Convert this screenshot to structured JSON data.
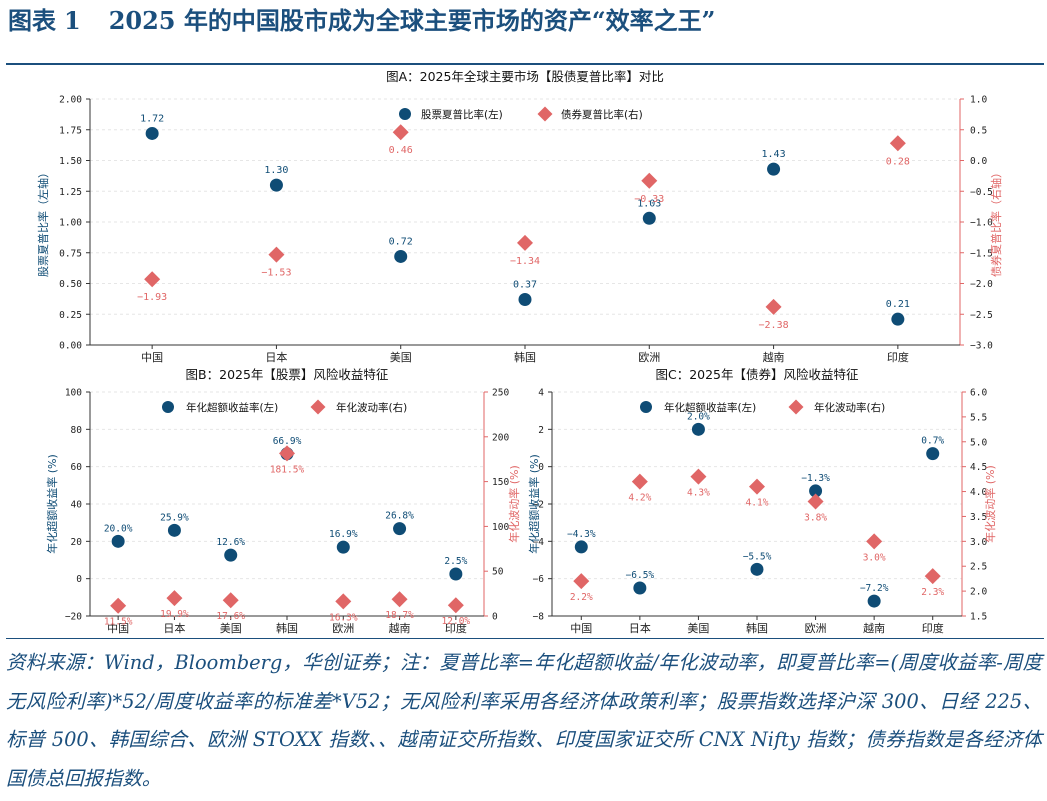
{
  "figure": {
    "label": "图表",
    "number": "1",
    "title": "2025 年的中国股市成为全球主要市场的资产“效率之王”"
  },
  "note": "资料来源：Wind，Bloomberg，华创证券；注：夏普比率=年化超额收益/年化波动率，即夏普比率=(周度收益率-周度无风险利率)*52/周度收益率的标准差*V52；无风险利率采用各经济体政策利率；股票指数选择沪深 300、日经 225、标普 500、韩国综合、欧洲 STOXX 指数、、越南证交所指数、印度国家证交所 CNX Nifty 指数；债券指数是各经济体国债总回报指数。",
  "colors": {
    "blue": "#0f4c75",
    "red": "#e06666",
    "title": "#1b4f7d"
  },
  "chart_data": [
    {
      "id": "A",
      "type": "scatter",
      "title": "图A：2025年全球主要市场【股债夏普比率】对比",
      "categories": [
        "中国",
        "日本",
        "美国",
        "韩国",
        "欧洲",
        "越南",
        "印度"
      ],
      "ylabel_left": "股票夏普比率（左轴）",
      "ylabel_right": "债券夏普比率（右轴）",
      "ylim_left": [
        0,
        2
      ],
      "yticks_left": [
        "0.00",
        "0.25",
        "0.50",
        "0.75",
        "1.00",
        "1.25",
        "1.50",
        "1.75",
        "2.00"
      ],
      "ylim_right": [
        -3,
        1
      ],
      "yticks_right": [
        "−3.0",
        "−2.5",
        "−2.0",
        "−1.5",
        "−1.0",
        "−0.5",
        "0.0",
        "0.5",
        "1.0"
      ],
      "legend_position": "top-center",
      "series": [
        {
          "name": "股票夏普比率(左)",
          "axis": "left",
          "marker": "circle",
          "color": "#0f4c75",
          "values": [
            1.72,
            1.3,
            0.72,
            0.37,
            1.03,
            1.43,
            0.21
          ],
          "labels": [
            "1.72",
            "1.30",
            "0.72",
            "0.37",
            "1.03",
            "1.43",
            "0.21"
          ]
        },
        {
          "name": "债券夏普比率(右)",
          "axis": "right",
          "marker": "diamond",
          "color": "#e06666",
          "values": [
            -1.93,
            -1.53,
            0.46,
            -1.34,
            -0.33,
            -2.38,
            0.28
          ],
          "labels": [
            "−1.93",
            "−1.53",
            "0.46",
            "−1.34",
            "−0.33",
            "−2.38",
            "0.28"
          ]
        }
      ]
    },
    {
      "id": "B",
      "type": "scatter",
      "title": "图B：2025年【股票】风险收益特征",
      "categories": [
        "中国",
        "日本",
        "美国",
        "韩国",
        "欧洲",
        "越南",
        "印度"
      ],
      "ylabel_left": "年化超额收益率 (%)",
      "ylabel_right": "年化波动率 (%)",
      "ylim_left": [
        -20,
        100
      ],
      "yticks_left": [
        "−20",
        "0",
        "20",
        "40",
        "60",
        "80",
        "100"
      ],
      "ylim_right": [
        0,
        250
      ],
      "yticks_right": [
        "0",
        "50",
        "100",
        "150",
        "200",
        "250"
      ],
      "legend_position": "top-center",
      "series": [
        {
          "name": "年化超额收益率(左)",
          "axis": "left",
          "marker": "circle",
          "color": "#0f4c75",
          "values": [
            20.0,
            25.9,
            12.6,
            66.9,
            16.9,
            26.8,
            2.5
          ],
          "labels": [
            "20.0%",
            "25.9%",
            "12.6%",
            "66.9%",
            "16.9%",
            "26.8%",
            "2.5%"
          ]
        },
        {
          "name": "年化波动率(右)",
          "axis": "right",
          "marker": "diamond",
          "color": "#e06666",
          "values": [
            11.5,
            19.9,
            17.6,
            181.5,
            16.3,
            18.7,
            12.0
          ],
          "labels": [
            "11.5%",
            "19.9%",
            "17.6%",
            "181.5%",
            "16.3%",
            "18.7%",
            "12.0%"
          ]
        }
      ]
    },
    {
      "id": "C",
      "type": "scatter",
      "title": "图C：2025年【债券】风险收益特征",
      "categories": [
        "中国",
        "日本",
        "美国",
        "韩国",
        "欧洲",
        "越南",
        "印度"
      ],
      "ylabel_left": "年化超额收益率 (%)",
      "ylabel_right": "年化波动率 (%)",
      "ylim_left": [
        -8,
        4
      ],
      "yticks_left": [
        "−8",
        "−6",
        "−4",
        "−2",
        "0",
        "2",
        "4"
      ],
      "ylim_right": [
        1.5,
        6.0
      ],
      "yticks_right": [
        "1.5",
        "2.0",
        "2.5",
        "3.0",
        "3.5",
        "4.0",
        "4.5",
        "5.0",
        "5.5",
        "6.0"
      ],
      "legend_position": "top-center",
      "series": [
        {
          "name": "年化超额收益率(左)",
          "axis": "left",
          "marker": "circle",
          "color": "#0f4c75",
          "values": [
            -4.3,
            -6.5,
            2.0,
            -5.5,
            -1.3,
            -7.2,
            0.7
          ],
          "labels": [
            "−4.3%",
            "−6.5%",
            "2.0%",
            "−5.5%",
            "−1.3%",
            "−7.2%",
            "0.7%"
          ]
        },
        {
          "name": "年化波动率(右)",
          "axis": "right",
          "marker": "diamond",
          "color": "#e06666",
          "values": [
            2.2,
            4.2,
            4.3,
            4.1,
            3.8,
            3.0,
            2.3
          ],
          "labels": [
            "2.2%",
            "4.2%",
            "4.3%",
            "4.1%",
            "3.8%",
            "3.0%",
            "2.3%"
          ]
        }
      ]
    }
  ]
}
